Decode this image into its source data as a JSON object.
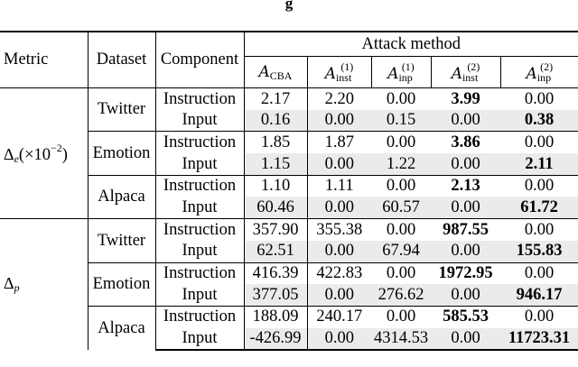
{
  "caption": "g",
  "headers": {
    "metric": "Metric",
    "dataset": "Dataset",
    "component": "Component",
    "attack_method": "Attack method",
    "methods": [
      {
        "base": "A",
        "sub": "CBA",
        "sup": ""
      },
      {
        "base": "A",
        "sub": "inst",
        "sup": "(1)"
      },
      {
        "base": "A",
        "sub": "inp",
        "sup": "(1)"
      },
      {
        "base": "A",
        "sub": "inst",
        "sup": "(2)"
      },
      {
        "base": "A",
        "sub": "inp",
        "sup": "(2)"
      }
    ]
  },
  "metrics": [
    {
      "label_main": "Δ",
      "label_sub": "e",
      "label_rest": "(×10",
      "label_exp": "−2",
      "label_close": ")"
    },
    {
      "label_main": "Δ",
      "label_sub": "p",
      "label_rest": "",
      "label_exp": "",
      "label_close": ""
    }
  ],
  "datasets": [
    "Twitter",
    "Emotion",
    "Alpaca"
  ],
  "components": [
    "Instruction",
    "Input"
  ],
  "rows": [
    [
      "2.17",
      "2.20",
      "0.00",
      "3.99",
      "0.00"
    ],
    [
      "0.16",
      "0.00",
      "0.15",
      "0.00",
      "0.38"
    ],
    [
      "1.85",
      "1.87",
      "0.00",
      "3.86",
      "0.00"
    ],
    [
      "1.15",
      "0.00",
      "1.22",
      "0.00",
      "2.11"
    ],
    [
      "1.10",
      "1.11",
      "0.00",
      "2.13",
      "0.00"
    ],
    [
      "60.46",
      "0.00",
      "60.57",
      "0.00",
      "61.72"
    ],
    [
      "357.90",
      "355.38",
      "0.00",
      "987.55",
      "0.00"
    ],
    [
      "62.51",
      "0.00",
      "67.94",
      "0.00",
      "155.83"
    ],
    [
      "416.39",
      "422.83",
      "0.00",
      "1972.95",
      "0.00"
    ],
    [
      "377.05",
      "0.00",
      "276.62",
      "0.00",
      "946.17"
    ],
    [
      "188.09",
      "240.17",
      "0.00",
      "585.53",
      "0.00"
    ],
    [
      "-426.99",
      "0.00",
      "4314.53",
      "0.00",
      "11723.31"
    ]
  ],
  "bold_col_instruction": 3,
  "bold_col_input": 4
}
